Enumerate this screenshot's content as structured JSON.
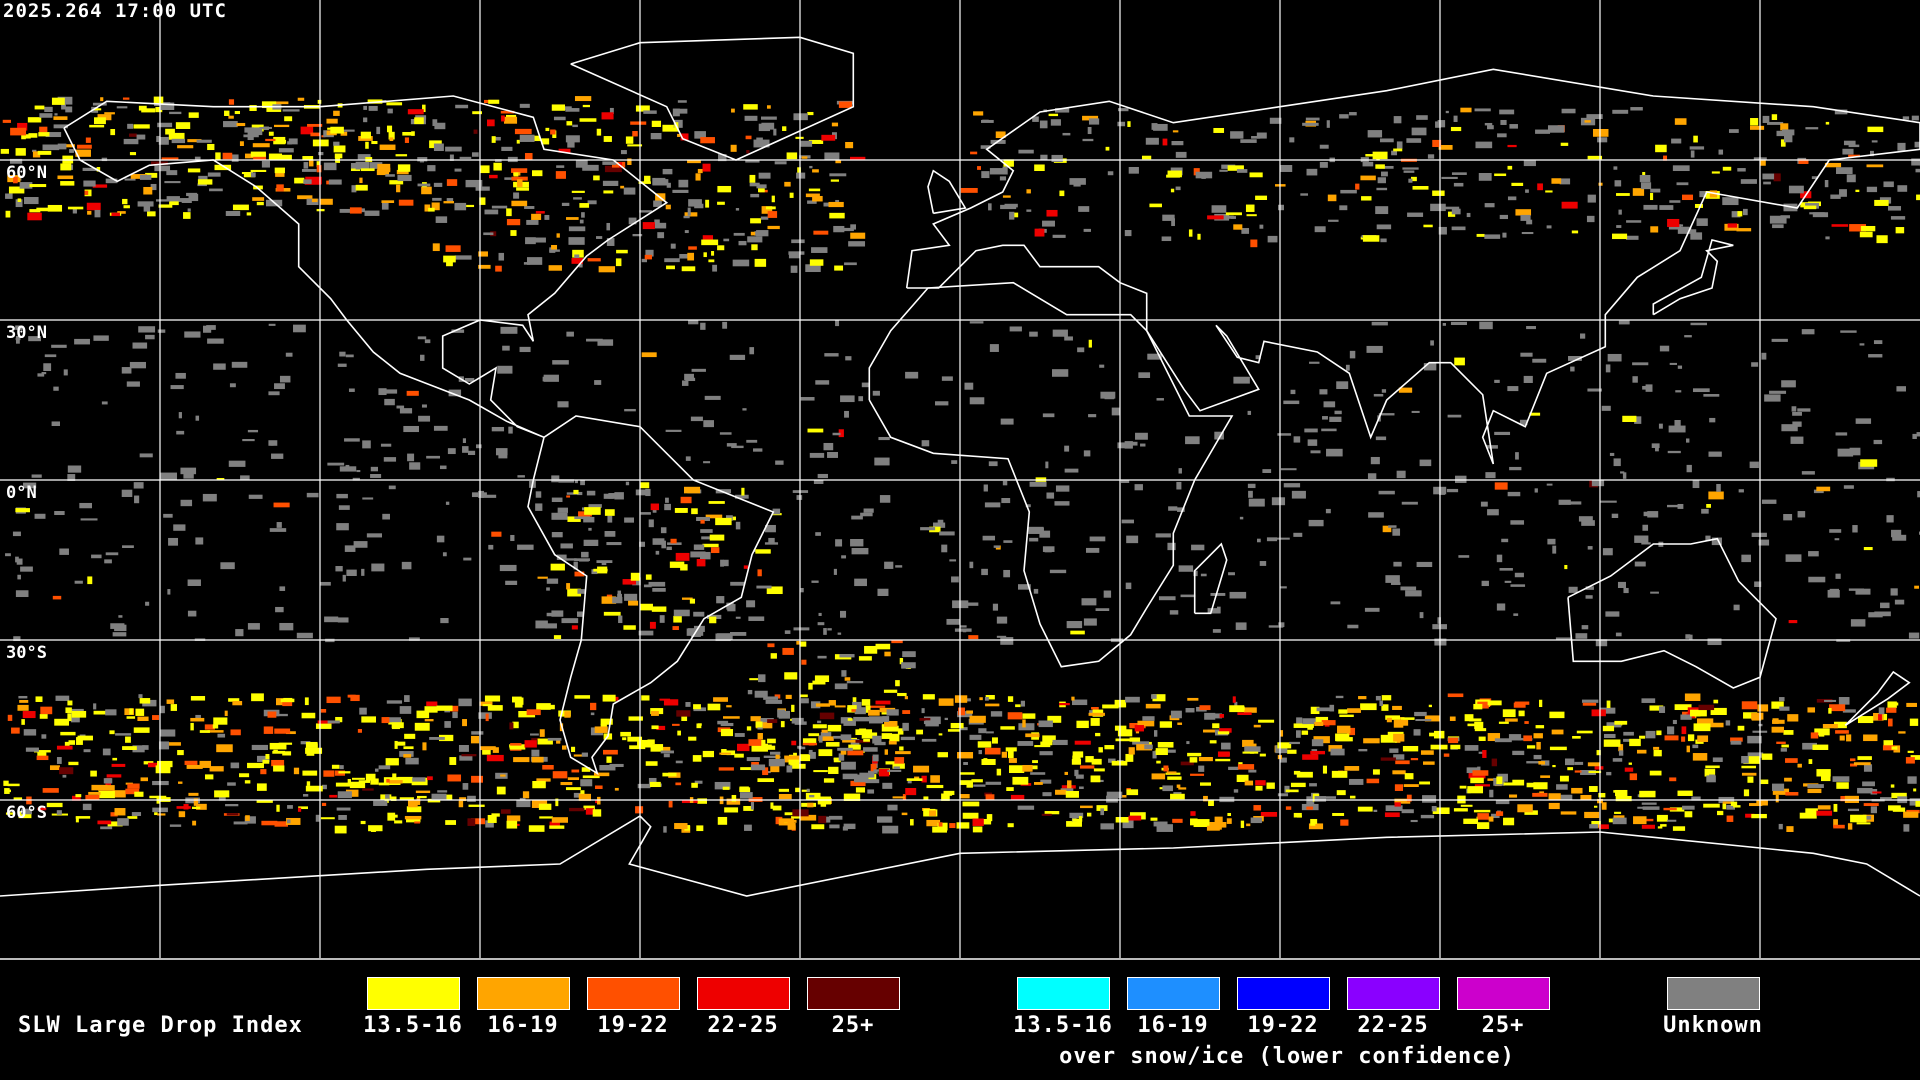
{
  "timestamp": "2025.264 17:00 UTC",
  "lat_labels": [
    "60°N",
    "30°N",
    "0°N",
    "30°S",
    "60°S"
  ],
  "legend": {
    "title": "SLW Large Drop Index",
    "main": [
      {
        "label": "13.5-16",
        "color": "#ffff00"
      },
      {
        "label": "16-19",
        "color": "#ffa500"
      },
      {
        "label": "19-22",
        "color": "#ff5000"
      },
      {
        "label": "22-25",
        "color": "#ee0000"
      },
      {
        "label": "25+",
        "color": "#660000"
      }
    ],
    "snow_ice": [
      {
        "label": "13.5-16",
        "color": "#00ffff"
      },
      {
        "label": "16-19",
        "color": "#1e8fff"
      },
      {
        "label": "19-22",
        "color": "#0000ff"
      },
      {
        "label": "22-25",
        "color": "#8a00ff"
      },
      {
        "label": "25+",
        "color": "#cc00cc"
      }
    ],
    "snow_ice_caption": "over snow/ice (lower confidence)",
    "unknown": {
      "label": "Unknown",
      "color": "#808080"
    }
  }
}
